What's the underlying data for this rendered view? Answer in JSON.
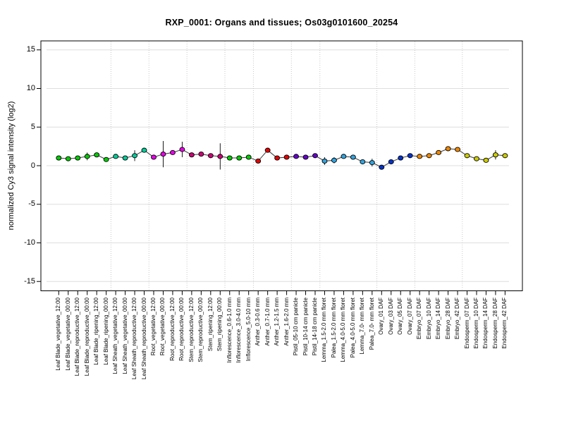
{
  "chart_data": {
    "type": "line",
    "title": "RXP_0001: Organs and tissues; Os03g0101600_20254",
    "ylabel": "normalized Cy3 signal intensity (log2)",
    "xlabel": "",
    "ylim": [
      -15,
      15
    ],
    "yticks": [
      15,
      10,
      5,
      0,
      -5,
      -10,
      -15
    ],
    "legend_position": "none",
    "grid": "horizontal solid gray lines every 5 units; dotted vertical separators between organ groups",
    "marker": "filled circle with black outline",
    "line_color": "#3A3A3A",
    "gridline_color": "#DEDEDE",
    "separator_color": "#C8C8C8",
    "axis_color": "#000000",
    "categories": [
      "Leaf Blade_vegetative_12:00",
      "Leaf Blade_vegetative_00:00",
      "Leaf Blade_reproductive_12:00",
      "Leaf Blade_reproductive_00:00",
      "Leaf Blade_ripening_12:00",
      "Leaf Blade_ripening_00:00",
      "Leaf Sheath_vegetative_12:00",
      "Leaf Sheath_vegetative_00:00",
      "Leaf Sheath_reproductive_12:00",
      "Leaf Sheath_reproductive_00:00",
      "Root_vegetative_12:00",
      "Root_vegetative_00:00",
      "Root_reproductive_12:00",
      "Root_reproductive_00:00",
      "Stem_reproductive_12:00",
      "Stem_reproductive_00:00",
      "Stem_ripening_12:00",
      "Stem_ripening_00:00",
      "Inflorescence_0.6-1.0 mm",
      "Inflorescence_3.0-4.0 mm",
      "Inflorescence_5.0-10 mm",
      "Anther_0.3-0.6 mm",
      "Anther_0.7-1.0 mm",
      "Anther_1.2-1.5 mm",
      "Anther_1.6-2.0 mm",
      "Pistil_05-10 cm panicle",
      "Pistil_10-14 cm panicle",
      "Pistil_14-18 cm panicle",
      "Lemma_1.5-2.0 mm floret",
      "Palea_1.5-2.0 mm floret",
      "Lemma_4.0-5.0 mm floret",
      "Palea_4.0-5.0 mm floret",
      "Lemma_7.0- mm floret",
      "Palea_7.0- mm floret",
      "Ovary_01 DAF",
      "Ovary_03 DAF",
      "Ovary_05 DAF",
      "Ovary_07 DAF",
      "Embryo_07 DAF",
      "Embryo_10 DAF",
      "Embryo_14 DAF",
      "Embryo_28 DAF",
      "Embryo_42 DAF",
      "Endosperm_07 DAF",
      "Endosperm_10 DAF",
      "Endosperm_14 DAF",
      "Endosperm_28 DAF",
      "Endosperm_42 DAF"
    ],
    "values": [
      1.0,
      0.9,
      1.0,
      1.2,
      1.4,
      0.8,
      1.2,
      1.0,
      1.3,
      2.0,
      1.1,
      1.5,
      1.7,
      2.1,
      1.4,
      1.5,
      1.3,
      1.2,
      1.0,
      1.0,
      1.1,
      0.6,
      2.0,
      1.0,
      1.1,
      1.2,
      1.1,
      1.3,
      0.6,
      0.7,
      1.2,
      1.1,
      0.5,
      0.4,
      -0.2,
      0.5,
      1.0,
      1.3,
      1.2,
      1.3,
      1.7,
      2.2,
      2.1,
      1.3,
      0.9,
      0.7,
      1.4,
      1.3
    ],
    "errors": [
      0,
      0,
      0,
      0.5,
      0,
      0,
      0,
      0,
      0.7,
      0,
      0,
      1.7,
      0,
      1.0,
      0,
      0,
      0,
      1.7,
      0,
      0,
      0,
      0,
      0,
      0,
      0,
      0,
      0,
      0,
      0.5,
      0.4,
      0,
      0,
      0,
      0.5,
      0,
      0.3,
      0,
      0,
      0,
      0,
      0,
      0,
      0,
      0,
      0,
      0,
      0.6,
      0
    ],
    "groups": [
      {
        "name": "Leaf Blade",
        "count": 6,
        "color": "#00CC00"
      },
      {
        "name": "Leaf Sheath",
        "count": 4,
        "color": "#00CC99"
      },
      {
        "name": "Root",
        "count": 4,
        "color": "#E800E8"
      },
      {
        "name": "Stem",
        "count": 4,
        "color": "#CC0077"
      },
      {
        "name": "Inflorescence",
        "count": 3,
        "color": "#00CC00"
      },
      {
        "name": "Anther",
        "count": 4,
        "color": "#E60000"
      },
      {
        "name": "Pistil",
        "count": 3,
        "color": "#6600CC"
      },
      {
        "name": "Lemma/Palea",
        "count": 6,
        "color": "#33A3DD"
      },
      {
        "name": "Ovary",
        "count": 4,
        "color": "#0033CC"
      },
      {
        "name": "Embryo",
        "count": 5,
        "color": "#EE8800"
      },
      {
        "name": "Endosperm",
        "count": 5,
        "color": "#CCCC00"
      }
    ]
  }
}
